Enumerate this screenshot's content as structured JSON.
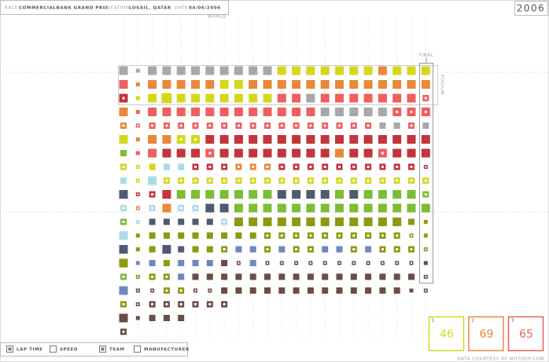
{
  "header": {
    "race_label": "RACE",
    "race": "COMMERCIALBANK GRAND PRIX",
    "location_label": "LOCATION",
    "location": "LOSAIL, QATAR",
    "date_label": "DATE",
    "date": "04/06/2006",
    "year": "2006",
    "class": "WORLD"
  },
  "grid": {
    "final_label": "FINAL",
    "podium_label": "PODIUM",
    "colors": {
      "Y": "#d4d81c",
      "O": "#e8883a",
      "R": "#ef5f5f",
      "D": "#c3343b",
      "G": "#a8a8a8",
      "L": "#a9dde5",
      "B": "#4f5b73",
      "N": "#7dbd34",
      "V": "#8c9a12",
      "P": "#6f87c1",
      "K": "#6d4c46"
    },
    "rows": [
      "G3 G1 G3 G3 G3 G3 G3 G3 G3 G3 G3 Y3 Y3 Y3 Y3 Y3 Y3 Y3 O3 Y3 Y3 Y3",
      "R3 O1 O3 O3 O3 O3 O3 Y3 Y3 O3 O3 O3 O3 O3 O3 O3 O3 O3 O3 O3 O3 O3",
      "D3d Y1 Y3 Y4 Y3 Y3 Y3 Y3 Y3 Y3 Y3 R3 R3 G3 R3 R3 R3 R3 R3 R3 R3 R2d",
      "O3 R1 R3 R3 R3 R3 R3 R3 R3 R3 R3 R3 R3 R3 G3 G3 G3 G3 G3 R3d R3d R3d",
      "O2d R1d R2d R2d R2d R2d R2d R2d R2d R2d R2d R2d R2d R2d R2d R2d R2d R2d G2 G2 R2d G2",
      "Y3 O1 O3 O3 Y3d Y3d D3 D3 D3 D3 D3 D3 D3 D3 D3 D3 D3 D3 D3 D3 D3 D3",
      "N2 R1 R3 D3 D3 D3 R3d D3 D3 D3 D3 D3 D3 D3 D3 O3 D3 D3 R3d D3 D3 D3",
      "Y2d Y1d Y2 L2 L2 D2d D2d D2d O2d O2d O2d D2d D2d D2d D2d D2d D2d D2d D2d D2d D2d D1d",
      "L2 Y1d L3 Y2d Y2d Y2d Y2d Y2d Y2d Y2d Y2d Y2d Y2d Y2d Y2d Y2d Y2d Y2d Y2d Y2d Y2d Y2d",
      "B3 D1d D2d D3 N3 N3 N3 N3 N3 N3 N3 B3 B3 B3 B3 N3 B3 N3 N3 N3 N3 N2d",
      "L2d O1d L2d O3 L2d L2d B3 B3 N3 N3 N3 N3 N3 N3 N3 N3 N3 N3 N3 N3 N3 N3",
      "N2d L1d B2 B2 B2 B2 B2 L2d V3 V3 V3 V3 V3 V3 V3 V3 V3 V3 V3 V3 V2 V1",
      "L3 V1 V2 V2 V2 V2 V2 V2 V2 V2 V2d V2d V2d V2d V2d V2d V2d V2d V2d V2d V1d V1",
      "B3 V1 V2 B3 B2 V2 V2 V2d P2 P2 V2d P2 V2d V2d P2 P2 V2d P2 V2d V2d V2d V1d",
      "V3 P1 P2 V2 P2 P2 P2 K2 K1d P2 K1d K1d K1d K1d K1d K1d K1d K1d K1d K1d K1d K1",
      "N2d V1d V2d V2d P2 K2 K2 K2 K2 K2 K2 K2 K2 K2 K2 K2 K2 K2 K2 K2 K2 K1d",
      "P3 K1d K1d V2d V2d K1d K1d K2 K2 K2 K2 K2 K2 K2 K2 K2 K2 K2 K2 K2 K1 K1d",
      "V2d K1d K2d K2d K2d K2d K2d K2d",
      "K3 K1 K2 K2 K2",
      "K2d"
    ]
  },
  "legend": [
    "LAP TIME",
    "SPEED",
    "TEAM",
    "MANUFACTURER"
  ],
  "legend_checked": [
    true,
    false,
    true,
    false
  ],
  "podium": [
    {
      "place": "1",
      "number": "46",
      "color": "#d4d81c"
    },
    {
      "place": "2",
      "number": "69",
      "color": "#e8883a"
    },
    {
      "place": "3",
      "number": "65",
      "color": "#ef5f5f"
    }
  ],
  "footer": "DATA COURTESY OF MOTOGP.COM"
}
